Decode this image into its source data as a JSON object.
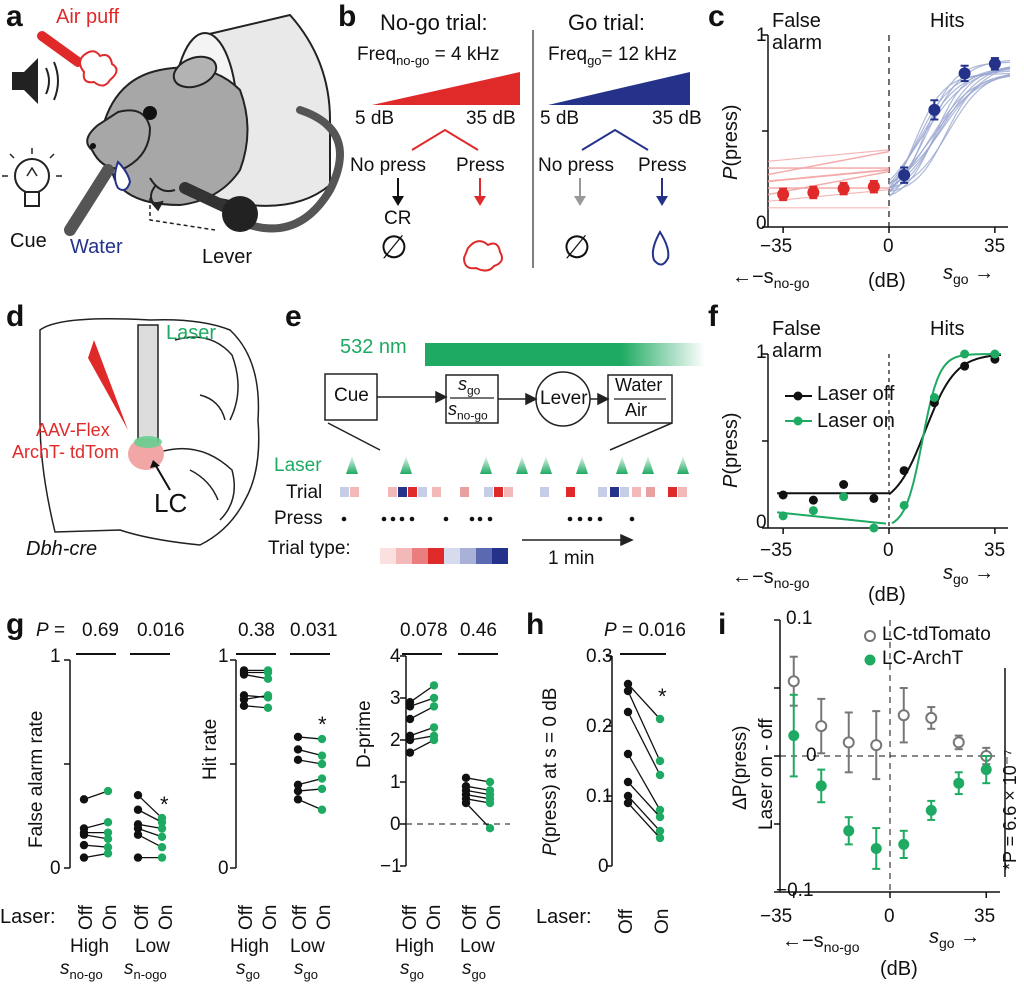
{
  "panel_labels": {
    "a": "a",
    "b": "b",
    "c": "c",
    "d": "d",
    "e": "e",
    "f": "f",
    "g": "g",
    "h": "h",
    "i": "i"
  },
  "panel_a": {
    "air_puff": "Air puff",
    "cue": "Cue",
    "water": "Water",
    "lever": "Lever"
  },
  "panel_b": {
    "nogo_title": "No-go trial:",
    "nogo_freq_prefix": "Freq",
    "nogo_freq_sub": "no-go",
    "nogo_freq_suffix": " = 4 kHz",
    "go_title": "Go trial:",
    "go_freq_prefix": "Freq",
    "go_freq_sub": "go",
    "go_freq_suffix": "= 12 kHz",
    "db_low": "5 dB",
    "db_high": "35 dB",
    "no_press": "No press",
    "press": "Press",
    "cr": "CR",
    "null_symbol": "∅"
  },
  "panel_c": {
    "false_alarm_1": "False",
    "false_alarm_2": "alarm",
    "hits": "Hits",
    "ylabel_P": "P",
    "ylabel_rest": "(press)",
    "y_ticks": [
      "0",
      "1"
    ],
    "x_ticks": [
      "−35",
      "0",
      "35"
    ],
    "xl_left": "←−s",
    "xl_left_sub": "no-go",
    "xl_unit": "(dB)",
    "xl_right": "s",
    "xl_right_sub": "go",
    "arrow_right": "→"
  },
  "panel_d": {
    "laser": "Laser",
    "virus_1": "AAV-Flex",
    "virus_2": "ArchT- tdTom",
    "lc": "LC",
    "mouse": "Dbh-cre"
  },
  "panel_e": {
    "wavelength": "532 nm",
    "cue": "Cue",
    "s_go": "s",
    "s_go_sub": "go",
    "s_nogo": "s",
    "s_nogo_sub": "no-go",
    "lever": "Lever",
    "water": "Water",
    "air": "Air",
    "row_laser": "Laser",
    "row_trial": "Trial",
    "row_press": "Press",
    "row_trial_type": "Trial type:",
    "scale": "1 min"
  },
  "panel_f": {
    "false_alarm_1": "False",
    "false_alarm_2": "alarm",
    "hits": "Hits",
    "legend_off": "Laser off",
    "legend_on": "Laser on",
    "ylabel_P": "P",
    "ylabel_rest": "(press)",
    "y_ticks": [
      "0",
      "1"
    ],
    "x_ticks": [
      "−35",
      "0",
      "35"
    ],
    "xl_left": "←−s",
    "xl_left_sub": "no-go",
    "xl_unit": "(dB)",
    "xl_right": "s",
    "xl_right_sub": "go",
    "arrow_right": "→"
  },
  "panel_g": {
    "p_prefix": "P =",
    "sub1": {
      "ylabel": "False alarm rate",
      "p": [
        "0.69",
        "0.016"
      ],
      "y_ticks": [
        "0",
        "1"
      ],
      "groups": [
        "High",
        "Low"
      ],
      "group_vars": [
        "s",
        "s"
      ],
      "group_subs": [
        "no-go",
        "n-ogo"
      ]
    },
    "sub2": {
      "ylabel": "Hit rate",
      "p": [
        "0.38",
        "0.031"
      ],
      "y_ticks": [
        "0",
        "1"
      ],
      "groups": [
        "High",
        "Low"
      ],
      "group_vars": [
        "s",
        "s"
      ],
      "group_subs": [
        "go",
        "go"
      ]
    },
    "sub3": {
      "ylabel": "D-prime",
      "p": [
        "0.078",
        "0.46"
      ],
      "y_ticks": [
        "−1",
        "0",
        "1",
        "2",
        "3",
        "4"
      ],
      "groups": [
        "High",
        "Low"
      ],
      "group_vars": [
        "s",
        "s"
      ],
      "group_subs": [
        "go",
        "go"
      ]
    },
    "laser_label": "Laser:",
    "off": "Off",
    "on": "On",
    "star": "*"
  },
  "panel_h": {
    "p_text": "P = 0.016",
    "ylabel": "P(press) at s = 0 dB",
    "y_ticks": [
      "0",
      "0.1",
      "0.2",
      "0.3"
    ],
    "laser_label": "Laser:",
    "off": "Off",
    "on": "On",
    "star": "*"
  },
  "panel_i": {
    "legend_tdtomato": "LC-tdTomato",
    "legend_archt": "LC-ArchT",
    "ylabel_1": "ΔP(press)",
    "ylabel_2": "Laser on - off",
    "y_ticks": [
      "0.1",
      "0",
      "−0.1"
    ],
    "x_ticks": [
      "−35",
      "0",
      "35"
    ],
    "p_annot": "*P = 6.6 × 10⁻⁷",
    "xl_left": "←−s",
    "xl_left_sub": "no-go",
    "xl_right": "s",
    "xl_right_sub": "go",
    "arrow_right": "→",
    "xl_unit": "(dB)"
  },
  "colors": {
    "red": "#e02a2a",
    "blue": "#24328a",
    "green": "#1eaa62",
    "gray": "#777777",
    "pink": "#f2a6a6",
    "lightblue": "#9aa6cf"
  },
  "chart_data": [
    {
      "panel": "c",
      "type": "line",
      "xlabel": "(dB)",
      "ylabel": "P(press)",
      "xlim": [
        -40,
        40
      ],
      "ylim": [
        0,
        1
      ],
      "series": [
        {
          "name": "False alarm",
          "x": [
            -35,
            -25,
            -15,
            -5
          ],
          "y": [
            0.17,
            0.18,
            0.2,
            0.21
          ],
          "err": [
            0.03,
            0.03,
            0.03,
            0.03
          ]
        },
        {
          "name": "Hits",
          "x": [
            5,
            15,
            25,
            35
          ],
          "y": [
            0.27,
            0.61,
            0.8,
            0.85
          ],
          "err": [
            0.04,
            0.05,
            0.04,
            0.03
          ]
        }
      ]
    },
    {
      "panel": "f",
      "type": "line",
      "xlabel": "(dB)",
      "ylabel": "P(press)",
      "xlim": [
        -40,
        40
      ],
      "ylim": [
        0,
        1
      ],
      "series": [
        {
          "name": "Laser off",
          "x": [
            -35,
            -25,
            -15,
            -5,
            5,
            15,
            25,
            35
          ],
          "y": [
            0.19,
            0.16,
            0.25,
            0.17,
            0.33,
            0.72,
            0.93,
            0.97
          ]
        },
        {
          "name": "Laser on",
          "x": [
            -35,
            -25,
            -15,
            -5,
            5,
            15,
            25,
            35
          ],
          "y": [
            0.07,
            0.1,
            0.18,
            0.0,
            0.13,
            0.75,
            1.0,
            1.0
          ]
        }
      ]
    },
    {
      "panel": "g1",
      "type": "scatter",
      "ylabel": "False alarm rate",
      "ylim": [
        0,
        1
      ],
      "high": {
        "off": [
          0.33,
          0.19,
          0.17,
          0.16,
          0.11,
          0.05
        ],
        "on": [
          0.37,
          0.22,
          0.17,
          0.14,
          0.1,
          0.07
        ]
      },
      "low": {
        "off": [
          0.35,
          0.28,
          0.21,
          0.19,
          0.16,
          0.05
        ],
        "on": [
          0.24,
          0.22,
          0.19,
          0.15,
          0.1,
          0.05
        ]
      }
    },
    {
      "panel": "g2",
      "type": "scatter",
      "ylabel": "Hit rate",
      "ylim": [
        0,
        1
      ],
      "high": {
        "off": [
          0.95,
          0.94,
          0.93,
          0.83,
          0.81,
          0.78
        ],
        "on": [
          0.95,
          0.94,
          0.91,
          0.82,
          0.83,
          0.77
        ]
      },
      "low": {
        "off": [
          0.63,
          0.57,
          0.52,
          0.4,
          0.37,
          0.33
        ],
        "on": [
          0.62,
          0.54,
          0.5,
          0.43,
          0.38,
          0.28
        ]
      }
    },
    {
      "panel": "g3",
      "type": "scatter",
      "ylabel": "D-prime",
      "ylim": [
        -1,
        4
      ],
      "high": {
        "off": [
          2.9,
          2.8,
          2.5,
          2.1,
          2.0,
          1.7
        ],
        "on": [
          3.3,
          3.0,
          2.8,
          2.3,
          2.1,
          2.0
        ]
      },
      "low": {
        "off": [
          1.1,
          0.9,
          0.8,
          0.7,
          0.6,
          0.5
        ],
        "on": [
          1.0,
          0.8,
          0.7,
          0.6,
          0.5,
          -0.1
        ]
      }
    },
    {
      "panel": "h",
      "type": "scatter",
      "ylabel": "P(press) at s = 0 dB",
      "ylim": [
        0,
        0.3
      ],
      "off": [
        0.26,
        0.25,
        0.22,
        0.16,
        0.12,
        0.1,
        0.09
      ],
      "on": [
        0.21,
        0.15,
        0.13,
        0.08,
        0.07,
        0.05,
        0.04
      ]
    },
    {
      "panel": "i",
      "type": "scatter",
      "ylabel": "ΔP(press) Laser on - off",
      "xlim": [
        -40,
        40
      ],
      "ylim": [
        -0.1,
        0.1
      ],
      "series": [
        {
          "name": "LC-tdTomato",
          "x": [
            -35,
            -25,
            -15,
            -5,
            5,
            15,
            25,
            35
          ],
          "y": [
            0.055,
            0.022,
            0.01,
            0.008,
            0.03,
            0.028,
            0.01,
            0.0
          ],
          "err": [
            0.018,
            0.02,
            0.022,
            0.025,
            0.02,
            0.008,
            0.005,
            0.006
          ]
        },
        {
          "name": "LC-ArchT",
          "x": [
            -35,
            -25,
            -15,
            -5,
            5,
            15,
            25,
            35
          ],
          "y": [
            0.015,
            -0.022,
            -0.055,
            -0.068,
            -0.065,
            -0.04,
            -0.02,
            -0.01
          ],
          "err": [
            0.03,
            0.012,
            0.01,
            0.015,
            0.01,
            0.007,
            0.008,
            0.01
          ]
        }
      ]
    }
  ]
}
